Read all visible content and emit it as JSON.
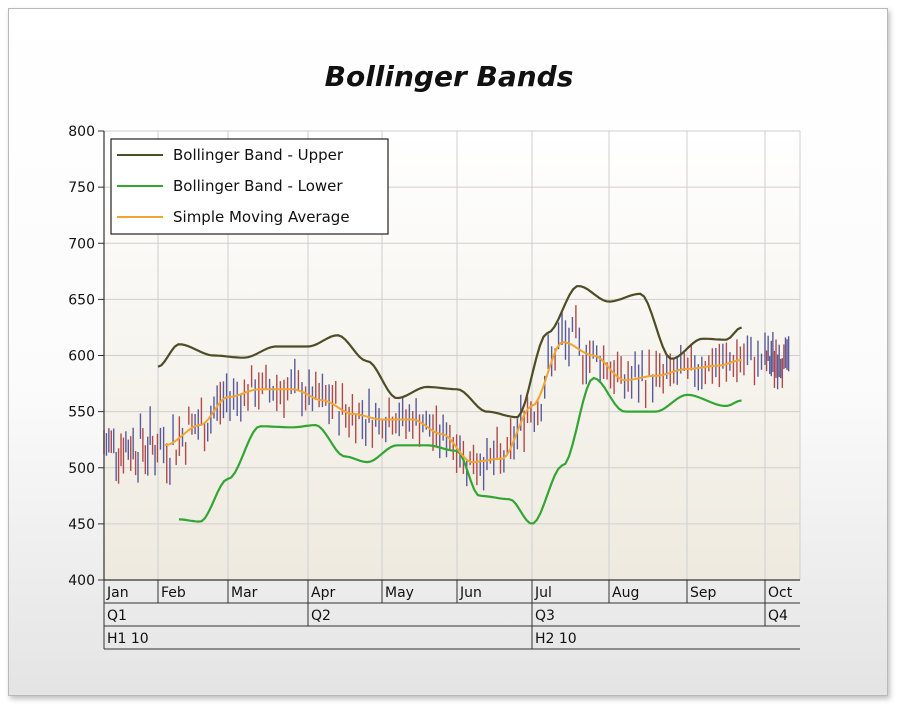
{
  "chart_data": {
    "type": "line",
    "title": "Bollinger Bands",
    "ylim": [
      400,
      800
    ],
    "yticks": [
      400,
      450,
      500,
      550,
      600,
      650,
      700,
      750,
      800
    ],
    "grid": true,
    "legend_position": "top-left",
    "months": [
      "Jan",
      "Feb",
      "Mar",
      "Apr",
      "May",
      "Jun",
      "Jul",
      "Aug",
      "Sep",
      "Oct"
    ],
    "quarters": [
      "Q1",
      "Q2",
      "Q3",
      "Q4"
    ],
    "halves": [
      "H1 10",
      "H2 10"
    ],
    "series": [
      {
        "name": "Bollinger Band - Upper",
        "color": "#4d4d26",
        "x": [
          2.0,
          2.3,
          2.8,
          3.2,
          3.6,
          4.0,
          4.4,
          4.8,
          5.2,
          5.6,
          6.0,
          6.4,
          6.8,
          7.2,
          7.6,
          8.0,
          8.4,
          8.8,
          9.2,
          9.5,
          9.7
        ],
        "values": [
          590,
          610,
          600,
          598,
          608,
          608,
          618,
          595,
          562,
          572,
          570,
          550,
          545,
          620,
          662,
          648,
          655,
          597,
          615,
          614,
          625
        ]
      },
      {
        "name": "Bollinger Band - Lower",
        "color": "#33a533",
        "x": [
          2.3,
          2.6,
          3.0,
          3.4,
          3.8,
          4.1,
          4.5,
          4.8,
          5.2,
          5.6,
          6.0,
          6.3,
          6.7,
          7.0,
          7.4,
          7.8,
          8.2,
          8.6,
          9.0,
          9.5,
          9.7
        ],
        "values": [
          454,
          452,
          490,
          537,
          536,
          538,
          510,
          505,
          520,
          520,
          515,
          475,
          472,
          450,
          502,
          580,
          550,
          550,
          565,
          555,
          560
        ]
      },
      {
        "name": "Simple Moving Average",
        "color": "#f2a530",
        "x": [
          2.1,
          2.6,
          3.0,
          3.4,
          3.8,
          4.2,
          4.6,
          5.0,
          5.4,
          5.8,
          6.2,
          6.6,
          7.0,
          7.4,
          7.8,
          8.2,
          8.6,
          9.0,
          9.4,
          9.7
        ],
        "values": [
          520,
          538,
          563,
          570,
          570,
          560,
          548,
          543,
          543,
          530,
          505,
          508,
          555,
          612,
          600,
          578,
          582,
          588,
          591,
          596
        ]
      }
    ]
  },
  "colors": {
    "plot_bg_top": "#ffffff",
    "plot_bg_bottom": "#eeeadf",
    "grid": "#cfcfcf",
    "price_up": "#5a5a9a",
    "price_down": "#b04a4a"
  }
}
